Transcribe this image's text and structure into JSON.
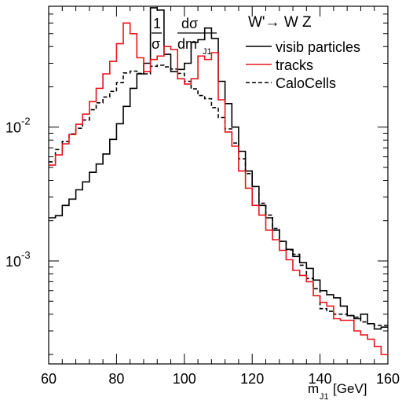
{
  "chart_data": {
    "type": "line",
    "title": "W'→ W Z",
    "yaxis_label": {
      "numerator_prefix": "1",
      "denominator_prefix": "σ",
      "numerator": "dσ",
      "denominator": "dm",
      "denominator_subscript": "J1"
    },
    "xlabel": {
      "prefix": "m",
      "subscript": "J1",
      "unit": "[GeV]"
    },
    "xlim": [
      60,
      160
    ],
    "ylim": [
      0.00017,
      0.08
    ],
    "yscale": "log",
    "x_ticks": [
      "60",
      "80",
      "100",
      "120",
      "140",
      "160"
    ],
    "y_ticks": [
      {
        "base": "10",
        "exp": "-2",
        "value": 0.01
      },
      {
        "base": "10",
        "exp": "-3",
        "value": 0.001
      }
    ],
    "legend_position": "top-right",
    "bin_width": 2,
    "series": [
      {
        "name": "visib particles",
        "color": "#000000",
        "dash": "solid",
        "values": [
          0.0021,
          0.00218,
          0.0026,
          0.0029,
          0.0034,
          0.0039,
          0.0046,
          0.0053,
          0.0063,
          0.0081,
          0.0106,
          0.0143,
          0.0195,
          0.025,
          0.03,
          0.078,
          0.075,
          0.035,
          0.026,
          0.027,
          0.03,
          0.043,
          0.045,
          0.055,
          0.046,
          0.022,
          0.015,
          0.01,
          0.0066,
          0.0047,
          0.0036,
          0.0026,
          0.0021,
          0.0017,
          0.0014,
          0.00122,
          0.00108,
          0.00097,
          0.00088,
          0.00072,
          0.0006,
          0.00056,
          0.00053,
          0.00046,
          0.00039,
          0.00037,
          0.0004,
          0.00034,
          0.00031,
          0.00032
        ]
      },
      {
        "name": "tracks",
        "color": "#e8141c",
        "dash": "solid",
        "values": [
          0.0052,
          0.0062,
          0.0075,
          0.0088,
          0.0105,
          0.0125,
          0.0155,
          0.0195,
          0.025,
          0.031,
          0.042,
          0.06,
          0.05,
          0.033,
          0.026,
          0.032,
          0.034,
          0.04,
          0.038,
          0.023,
          0.021,
          0.023,
          0.034,
          0.032,
          0.036,
          0.016,
          0.0092,
          0.0072,
          0.0047,
          0.0035,
          0.0026,
          0.0022,
          0.0017,
          0.00144,
          0.0012,
          0.00102,
          0.00085,
          0.00078,
          0.0007,
          0.00055,
          0.00049,
          0.00046,
          0.00037,
          0.00036,
          0.00036,
          0.0003,
          0.00028,
          0.00026,
          0.00023,
          0.0002
        ]
      },
      {
        "name": "CaloCells",
        "color": "#000000",
        "dash": "dashed",
        "values": [
          0.0055,
          0.0068,
          0.0078,
          0.0089,
          0.0098,
          0.0113,
          0.0135,
          0.0152,
          0.0168,
          0.0185,
          0.0215,
          0.0254,
          0.0262,
          0.0252,
          0.025,
          0.0285,
          0.029,
          0.0282,
          0.0272,
          0.0252,
          0.022,
          0.0193,
          0.0172,
          0.0163,
          0.014,
          0.0118,
          0.0097,
          0.0076,
          0.0058,
          0.0045,
          0.0036,
          0.0027,
          0.0022,
          0.00175,
          0.0014,
          0.00121,
          0.00112,
          0.00093,
          0.00074,
          0.00062,
          0.00044,
          0.00042,
          0.0004,
          0.0004,
          0.00039,
          0.00038,
          0.00035,
          0.00034,
          0.00033,
          0.00033
        ]
      }
    ]
  }
}
